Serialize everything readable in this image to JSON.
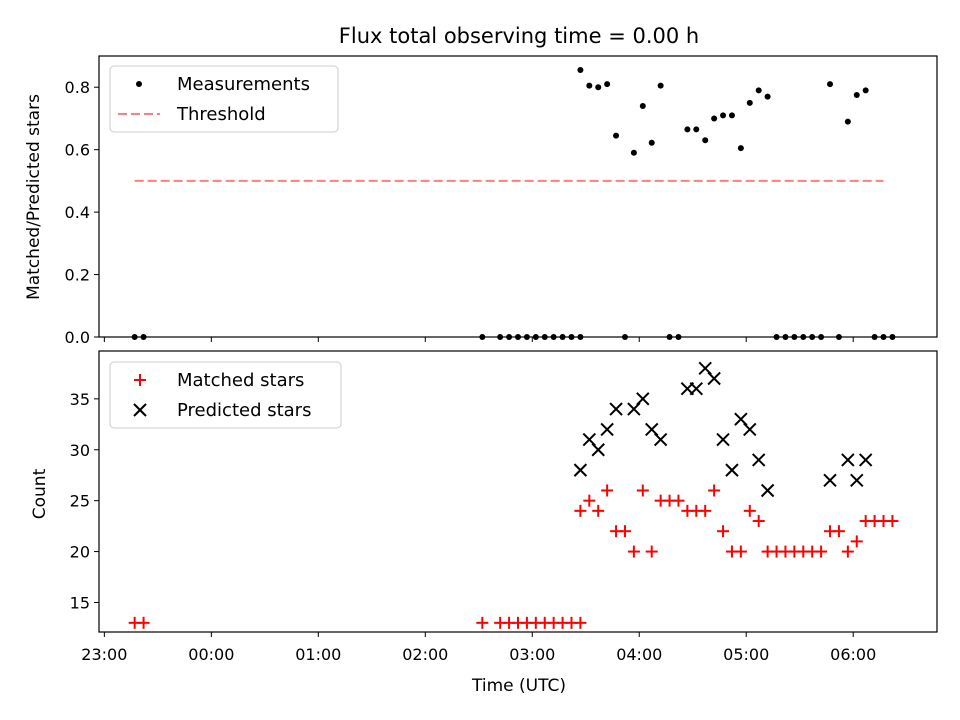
{
  "figure": {
    "title": "Flux total observing time = 0.00 h"
  },
  "chart_data": [
    {
      "type": "scatter",
      "ylabel": "Matched/Predicted stars",
      "xlabel": "",
      "x_axis_type": "time",
      "xlim": [
        "22:57",
        "06:47"
      ],
      "ylim": [
        0,
        0.9
      ],
      "yticks": [
        0.0,
        0.2,
        0.4,
        0.6,
        0.8
      ],
      "ytick_labels": [
        "0.0",
        "0.2",
        "0.4",
        "0.6",
        "0.8"
      ],
      "legend_position": "upper left",
      "grid": false,
      "series": [
        {
          "name": "Measurements",
          "kind": "scatter",
          "marker": "dot",
          "color": "#000000",
          "points": [
            [
              "23:17",
              0
            ],
            [
              "23:22",
              0
            ],
            [
              "02:32",
              0
            ],
            [
              "02:42",
              0
            ],
            [
              "02:47",
              0
            ],
            [
              "02:52",
              0
            ],
            [
              "02:57",
              0
            ],
            [
              "03:02",
              0
            ],
            [
              "03:07",
              0
            ],
            [
              "03:12",
              0
            ],
            [
              "03:17",
              0
            ],
            [
              "03:22",
              0
            ],
            [
              "03:27",
              0
            ],
            [
              "03:27",
              0.855
            ],
            [
              "03:32",
              0.805
            ],
            [
              "03:37",
              0.8
            ],
            [
              "03:42",
              0.81
            ],
            [
              "03:47",
              0.645
            ],
            [
              "03:52",
              0
            ],
            [
              "03:57",
              0.59
            ],
            [
              "04:02",
              0.74
            ],
            [
              "04:07",
              0.622
            ],
            [
              "04:12",
              0.805
            ],
            [
              "04:17",
              0
            ],
            [
              "04:22",
              0
            ],
            [
              "04:27",
              0.665
            ],
            [
              "04:32",
              0.665
            ],
            [
              "04:37",
              0.63
            ],
            [
              "04:42",
              0.7
            ],
            [
              "04:47",
              0.71
            ],
            [
              "04:52",
              0.71
            ],
            [
              "04:57",
              0.605
            ],
            [
              "05:02",
              0.75
            ],
            [
              "05:07",
              0.79
            ],
            [
              "05:12",
              0.77
            ],
            [
              "05:17",
              0
            ],
            [
              "05:22",
              0
            ],
            [
              "05:27",
              0
            ],
            [
              "05:32",
              0
            ],
            [
              "05:37",
              0
            ],
            [
              "05:42",
              0
            ],
            [
              "05:47",
              0.81
            ],
            [
              "05:52",
              0
            ],
            [
              "05:57",
              0.69
            ],
            [
              "06:02",
              0.775
            ],
            [
              "06:07",
              0.79
            ],
            [
              "06:12",
              0
            ],
            [
              "06:17",
              0
            ],
            [
              "06:22",
              0
            ]
          ]
        },
        {
          "name": "Threshold",
          "kind": "line",
          "dash": "dashed",
          "color": "#ff7f7f",
          "points": [
            [
              "23:17",
              0.5
            ],
            [
              "06:17",
              0.5
            ]
          ]
        }
      ]
    },
    {
      "type": "scatter",
      "ylabel": "Count",
      "xlabel": "Time (UTC)",
      "x_axis_type": "time",
      "xlim": [
        "22:57",
        "06:47"
      ],
      "ylim": [
        12.1,
        39.7
      ],
      "yticks": [
        15,
        20,
        25,
        30,
        35
      ],
      "ytick_labels": [
        "15",
        "20",
        "25",
        "30",
        "35"
      ],
      "xticks": [
        "23:00",
        "00:00",
        "01:00",
        "02:00",
        "03:00",
        "04:00",
        "05:00",
        "06:00"
      ],
      "legend_position": "upper left",
      "grid": false,
      "series": [
        {
          "name": "Matched stars",
          "kind": "scatter",
          "marker": "plus",
          "color": "#ff0000",
          "points": [
            [
              "23:17",
              13
            ],
            [
              "23:22",
              13
            ],
            [
              "02:32",
              13
            ],
            [
              "02:42",
              13
            ],
            [
              "02:47",
              13
            ],
            [
              "02:52",
              13
            ],
            [
              "02:57",
              13
            ],
            [
              "03:02",
              13
            ],
            [
              "03:07",
              13
            ],
            [
              "03:12",
              13
            ],
            [
              "03:17",
              13
            ],
            [
              "03:22",
              13
            ],
            [
              "03:27",
              13
            ],
            [
              "03:27",
              24
            ],
            [
              "03:32",
              25
            ],
            [
              "03:37",
              24
            ],
            [
              "03:42",
              26
            ],
            [
              "03:47",
              22
            ],
            [
              "03:52",
              22
            ],
            [
              "03:57",
              20
            ],
            [
              "04:02",
              26
            ],
            [
              "04:07",
              20
            ],
            [
              "04:12",
              25
            ],
            [
              "04:17",
              25
            ],
            [
              "04:22",
              25
            ],
            [
              "04:27",
              24
            ],
            [
              "04:32",
              24
            ],
            [
              "04:37",
              24
            ],
            [
              "04:42",
              26
            ],
            [
              "04:47",
              22
            ],
            [
              "04:52",
              20
            ],
            [
              "04:57",
              20
            ],
            [
              "05:02",
              24
            ],
            [
              "05:07",
              23
            ],
            [
              "05:12",
              20
            ],
            [
              "05:17",
              20
            ],
            [
              "05:22",
              20
            ],
            [
              "05:27",
              20
            ],
            [
              "05:32",
              20
            ],
            [
              "05:37",
              20
            ],
            [
              "05:42",
              20
            ],
            [
              "05:47",
              22
            ],
            [
              "05:52",
              22
            ],
            [
              "05:57",
              20
            ],
            [
              "06:02",
              21
            ],
            [
              "06:07",
              23
            ],
            [
              "06:12",
              23
            ],
            [
              "06:17",
              23
            ],
            [
              "06:22",
              23
            ]
          ]
        },
        {
          "name": "Predicted stars",
          "kind": "scatter",
          "marker": "x",
          "color": "#000000",
          "points": [
            [
              "03:27",
              28
            ],
            [
              "03:32",
              31
            ],
            [
              "03:37",
              30
            ],
            [
              "03:42",
              32
            ],
            [
              "03:47",
              34
            ],
            [
              "03:57",
              34
            ],
            [
              "04:02",
              35
            ],
            [
              "04:07",
              32
            ],
            [
              "04:12",
              31
            ],
            [
              "04:27",
              36
            ],
            [
              "04:32",
              36
            ],
            [
              "04:37",
              38
            ],
            [
              "04:42",
              37
            ],
            [
              "04:47",
              31
            ],
            [
              "04:52",
              28
            ],
            [
              "04:57",
              33
            ],
            [
              "05:02",
              32
            ],
            [
              "05:07",
              29
            ],
            [
              "05:12",
              26
            ],
            [
              "05:47",
              27
            ],
            [
              "05:57",
              29
            ],
            [
              "06:02",
              27
            ],
            [
              "06:07",
              29
            ]
          ]
        }
      ]
    }
  ]
}
